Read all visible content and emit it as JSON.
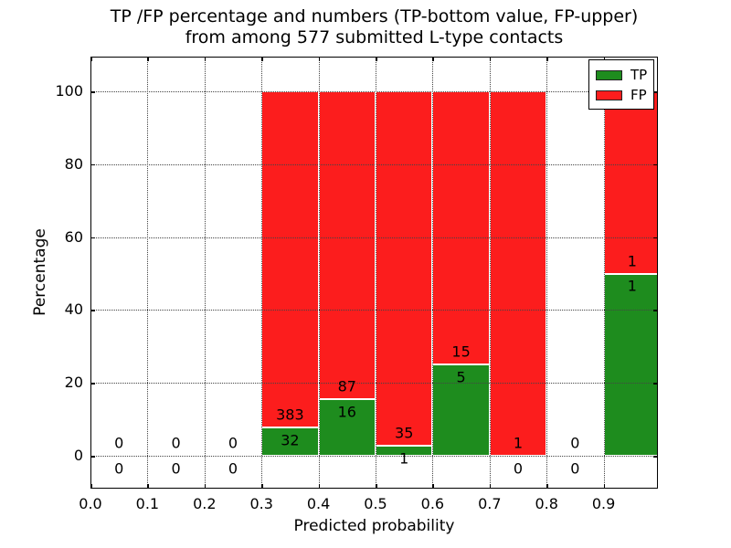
{
  "title": {
    "line1": "TP /FP percentage and numbers (TP-bottom value, FP-upper)",
    "line2": "from among 577 submitted L-type contacts"
  },
  "axes": {
    "xlabel": "Predicted probability",
    "ylabel": "Percentage"
  },
  "legend": {
    "items": [
      {
        "label": "TP",
        "color": "#1e8c1e"
      },
      {
        "label": "FP",
        "color": "#fc1d1d"
      }
    ]
  },
  "chart_data": {
    "type": "bar",
    "stacked": true,
    "title": "TP /FP percentage and numbers (TP-bottom value, FP-upper) from among 577 submitted L-type contacts",
    "xlabel": "Predicted probability",
    "ylabel": "Percentage",
    "xlim": [
      0.0,
      1.0
    ],
    "ylim": [
      -10,
      110
    ],
    "grid": "dotted",
    "legend_position": "upper right",
    "total_contacts": 577,
    "x_ticks": [
      "0.0",
      "0.1",
      "0.2",
      "0.3",
      "0.4",
      "0.5",
      "0.6",
      "0.7",
      "0.8",
      "0.9"
    ],
    "y_ticks": [
      "0",
      "20",
      "40",
      "60",
      "80",
      "100"
    ],
    "series_colors": {
      "TP": "#1e8c1e",
      "FP": "#fc1d1d"
    },
    "bins": [
      {
        "range": [
          0.0,
          0.1
        ],
        "tp": 0,
        "fp": 0,
        "tp_pct": null
      },
      {
        "range": [
          0.1,
          0.2
        ],
        "tp": 0,
        "fp": 0,
        "tp_pct": null
      },
      {
        "range": [
          0.2,
          0.3
        ],
        "tp": 0,
        "fp": 0,
        "tp_pct": null
      },
      {
        "range": [
          0.3,
          0.4
        ],
        "tp": 32,
        "fp": 383,
        "tp_pct": 7.7
      },
      {
        "range": [
          0.4,
          0.5
        ],
        "tp": 16,
        "fp": 87,
        "tp_pct": 15.5
      },
      {
        "range": [
          0.5,
          0.6
        ],
        "tp": 1,
        "fp": 35,
        "tp_pct": 2.8
      },
      {
        "range": [
          0.6,
          0.7
        ],
        "tp": 5,
        "fp": 15,
        "tp_pct": 25.0
      },
      {
        "range": [
          0.7,
          0.8
        ],
        "tp": 0,
        "fp": 1,
        "tp_pct": 0.0
      },
      {
        "range": [
          0.8,
          0.9
        ],
        "tp": 0,
        "fp": 0,
        "tp_pct": null
      },
      {
        "range": [
          0.9,
          1.0
        ],
        "tp": 1,
        "fp": 1,
        "tp_pct": 50.0
      }
    ]
  }
}
